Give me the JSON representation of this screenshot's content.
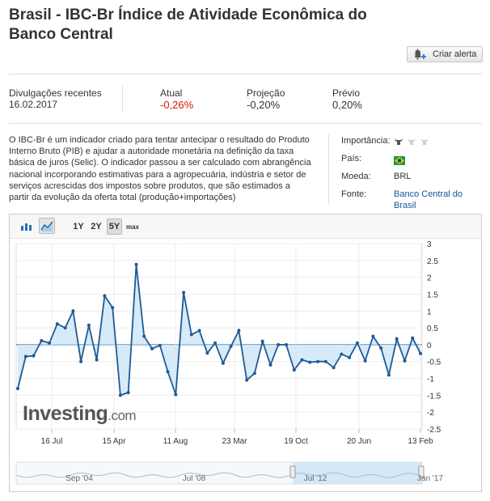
{
  "title": "Brasil - IBC-Br Índice de Atividade Econômica do Banco Central",
  "alert_button": "Criar alerta",
  "stats": {
    "release_label": "Divulgações recentes",
    "release_date": "16.02.2017",
    "actual_label": "Atual",
    "actual_value": "-0,26%",
    "forecast_label": "Projeção",
    "forecast_value": "-0,20%",
    "previous_label": "Prévio",
    "previous_value": "0,20%",
    "actual_color": "#d91400"
  },
  "description": "O IBC-Br é um indicador criado para tentar antecipar o resultado do Produto Interno Bruto (PIB) e ajudar a autoridade monetária na definição da taxa básica de juros (Selic). O indicador passou a ser calculado com abrangência nacional incorporando estimativas para a agropecuária, indústria e setor de serviços acrescidas dos impostos sobre produtos, que são estimados a partir da evolução da oferta total (produção+importações)",
  "meta": {
    "importance_label": "Importância:",
    "country_label": "País:",
    "currency_label": "Moeda:",
    "currency_value": "BRL",
    "source_label": "Fonte:",
    "source_value": "Banco Central do Brasil"
  },
  "toolbar": {
    "ranges": [
      "1Y",
      "2Y",
      "5Y",
      "max"
    ],
    "active_range": "5Y",
    "icons": [
      "bar-chart-icon",
      "area-chart-icon"
    ]
  },
  "watermark": {
    "brand": "Investing",
    "suffix": ".com"
  },
  "navigator": {
    "labels": [
      "Sep '04",
      "Jul '08",
      "Jul '12",
      "Jan '17"
    ]
  },
  "chart_data": {
    "type": "area",
    "x_tick_labels": [
      "16 Jul",
      "15 Apr",
      "11 Aug",
      "23 Mar",
      "19 Oct",
      "20 Jun",
      "13 Feb"
    ],
    "ylim": [
      -2.5,
      3
    ],
    "y_ticks": [
      "3",
      "2.5",
      "2",
      "1.5",
      "1",
      "0.5",
      "0",
      "-0.5",
      "-1",
      "-1.5",
      "-2",
      "-2.5"
    ],
    "grid": true,
    "line_color": "#1f5a96",
    "fill_color": "#cfe6f7",
    "values": [
      -1.3,
      -0.35,
      -0.33,
      0.12,
      0.05,
      0.62,
      0.5,
      1.0,
      -0.5,
      0.58,
      -0.45,
      1.45,
      1.1,
      -1.5,
      -1.42,
      2.38,
      0.25,
      -0.12,
      -0.02,
      -0.8,
      -1.48,
      1.55,
      0.3,
      0.42,
      -0.25,
      0.05,
      -0.55,
      -0.05,
      0.42,
      -1.05,
      -0.85,
      0.1,
      -0.6,
      0.0,
      0.0,
      -0.75,
      -0.45,
      -0.52,
      -0.5,
      -0.5,
      -0.68,
      -0.28,
      -0.38,
      0.05,
      -0.48,
      0.25,
      -0.1,
      -0.9,
      0.17,
      -0.48,
      0.2,
      -0.26
    ]
  }
}
